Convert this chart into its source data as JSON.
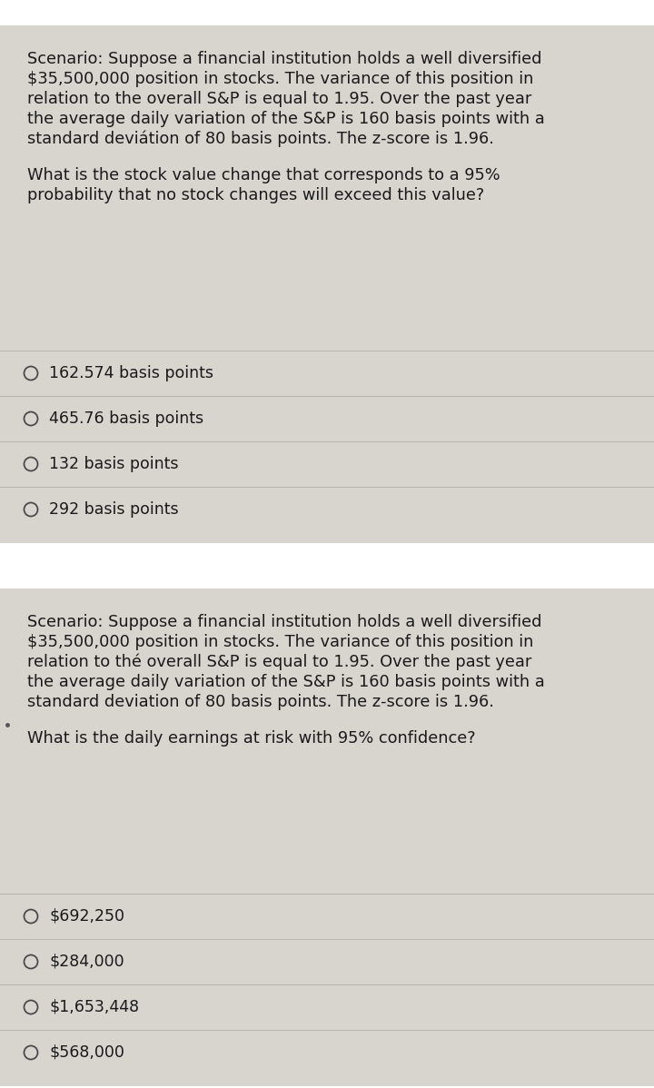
{
  "outer_bg": "#ffffff",
  "panel_bg": "#d8d5cf",
  "text_color": "#1a1a1a",
  "divider_color": "#b8b4ad",
  "font_size_scenario": 12.8,
  "font_size_question": 12.8,
  "font_size_option": 12.5,
  "panel1": {
    "scenario_lines": [
      "Scenario: Suppose a financial institution holds a well diversified",
      "$35,500,000 position in stocks. The variance of this position in",
      "relation to the overall S&P is equal to 1.95. Over the past year",
      "the average daily variation of the S&P is 160 basis points with a",
      "standard deviátion of 80 basis points. The z-score is 1.96."
    ],
    "question_lines": [
      "What is the stock value change that corresponds to a 95%",
      "probability that no stock changes will exceed this value?"
    ],
    "options": [
      "162.574 basis points",
      "465.76 basis points",
      "132 basis points",
      "292 basis points"
    ]
  },
  "panel2": {
    "scenario_lines": [
      "Scenario: Suppose a financial institution holds a well diversified",
      "$35,500,000 position in stocks. The variance of this position in",
      "relation to thé overall S&P is equal to 1.95. Over the past year",
      "the average daily variation of the S&P is 160 basis points with a",
      "standard deviation of 80 basis points. The z-score is 1.96."
    ],
    "question_lines": [
      "What is the daily earnings at risk with 95% confidence?"
    ],
    "options": [
      "$692,250",
      "$284,000",
      "$1,653,448",
      "$568,000"
    ],
    "has_dot": true
  }
}
